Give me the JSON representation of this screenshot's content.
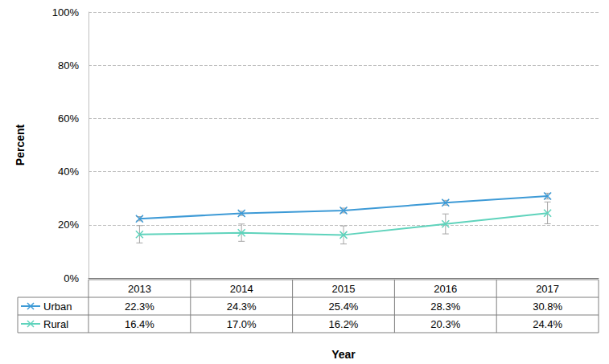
{
  "chart_data": {
    "type": "line",
    "x_label": "Year",
    "y_label": "Percent",
    "categories": [
      "2013",
      "2014",
      "2015",
      "2016",
      "2017"
    ],
    "ylim": [
      0,
      100
    ],
    "yticks": [
      {
        "value": 0,
        "label": "0%"
      },
      {
        "value": 20,
        "label": "20%"
      },
      {
        "value": 40,
        "label": "40%"
      },
      {
        "value": 60,
        "label": "60%"
      },
      {
        "value": 80,
        "label": "80%"
      },
      {
        "value": 100,
        "label": "100%"
      }
    ],
    "grid": true,
    "marker": "x",
    "line_style": "solid",
    "series": [
      {
        "name": "Urban",
        "color": "#3d9ad6",
        "values": [
          22.3,
          24.3,
          25.4,
          28.3,
          30.8
        ],
        "value_labels": [
          "22.3%",
          "24.3%",
          "25.4%",
          "28.3%",
          "30.8%"
        ],
        "ci_low": [
          21.5,
          23.5,
          24.5,
          27.4,
          29.7
        ],
        "ci_high": [
          23.1,
          25.1,
          26.3,
          29.2,
          31.9
        ]
      },
      {
        "name": "Rural",
        "color": "#5fd3bc",
        "values": [
          16.4,
          17.0,
          16.2,
          20.3,
          24.4
        ],
        "value_labels": [
          "16.4%",
          "17.0%",
          "16.2%",
          "20.3%",
          "24.4%"
        ],
        "ci_low": [
          13.2,
          13.8,
          12.8,
          16.6,
          20.4
        ],
        "ci_high": [
          19.7,
          20.3,
          19.6,
          24.1,
          28.6
        ]
      }
    ]
  }
}
